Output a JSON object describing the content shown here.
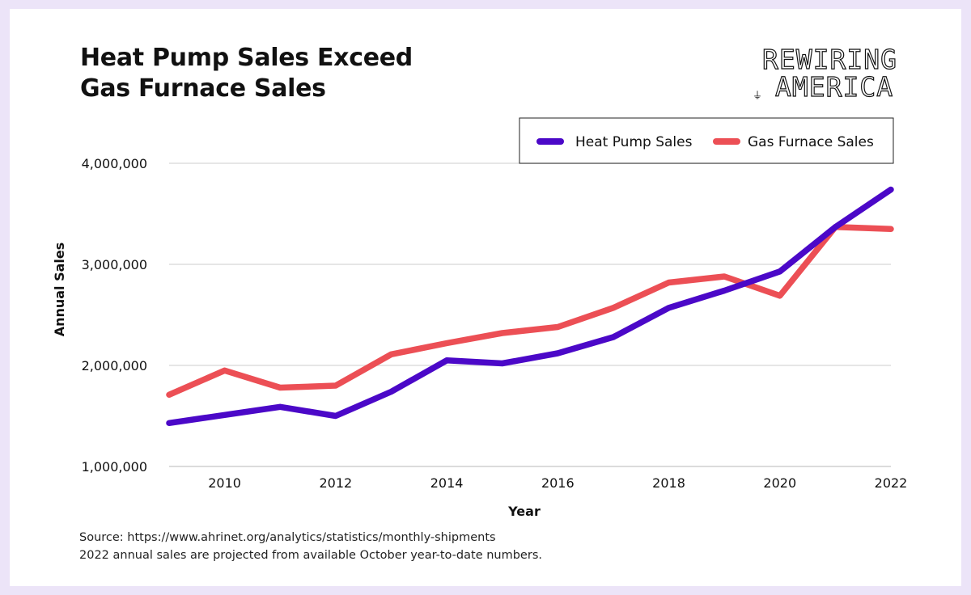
{
  "header": {
    "title_line1": "Heat Pump Sales Exceed",
    "title_line2": "Gas Furnace Sales"
  },
  "logo": {
    "line1": "REWIRING",
    "line2": "AMERICA",
    "icon": "plug-icon"
  },
  "footer": {
    "source": "Source: https://www.ahrinet.org/analytics/statistics/monthly-shipments",
    "note": "2022 annual sales are projected from available October year-to-date numbers."
  },
  "chart_data": {
    "type": "line",
    "title": "Heat Pump Sales Exceed Gas Furnace Sales",
    "xlabel": "Year",
    "ylabel": "Annual Sales",
    "x": [
      2009,
      2010,
      2011,
      2012,
      2013,
      2014,
      2015,
      2016,
      2017,
      2018,
      2019,
      2020,
      2021,
      2022
    ],
    "xlim": [
      2009,
      2022
    ],
    "ylim": [
      1000000,
      4000000
    ],
    "x_ticks": [
      "2010",
      "2012",
      "2014",
      "2016",
      "2018",
      "2020",
      "2022"
    ],
    "x_tick_values": [
      2010,
      2012,
      2014,
      2016,
      2018,
      2020,
      2022
    ],
    "y_ticks": [
      "1,000,000",
      "2,000,000",
      "3,000,000",
      "4,000,000"
    ],
    "y_tick_values": [
      1000000,
      2000000,
      3000000,
      4000000
    ],
    "grid": true,
    "legend_position": "top-right",
    "series": [
      {
        "name": "Heat Pump Sales",
        "color": "#4b08c8",
        "values": [
          1430000,
          1510000,
          1590000,
          1500000,
          1740000,
          2050000,
          2020000,
          2120000,
          2280000,
          2570000,
          2740000,
          2930000,
          3370000,
          3740000
        ]
      },
      {
        "name": "Gas Furnace Sales",
        "color": "#ec4f55",
        "values": [
          1710000,
          1950000,
          1780000,
          1800000,
          2110000,
          2220000,
          2320000,
          2380000,
          2570000,
          2820000,
          2880000,
          2690000,
          3370000,
          3350000
        ]
      }
    ]
  }
}
